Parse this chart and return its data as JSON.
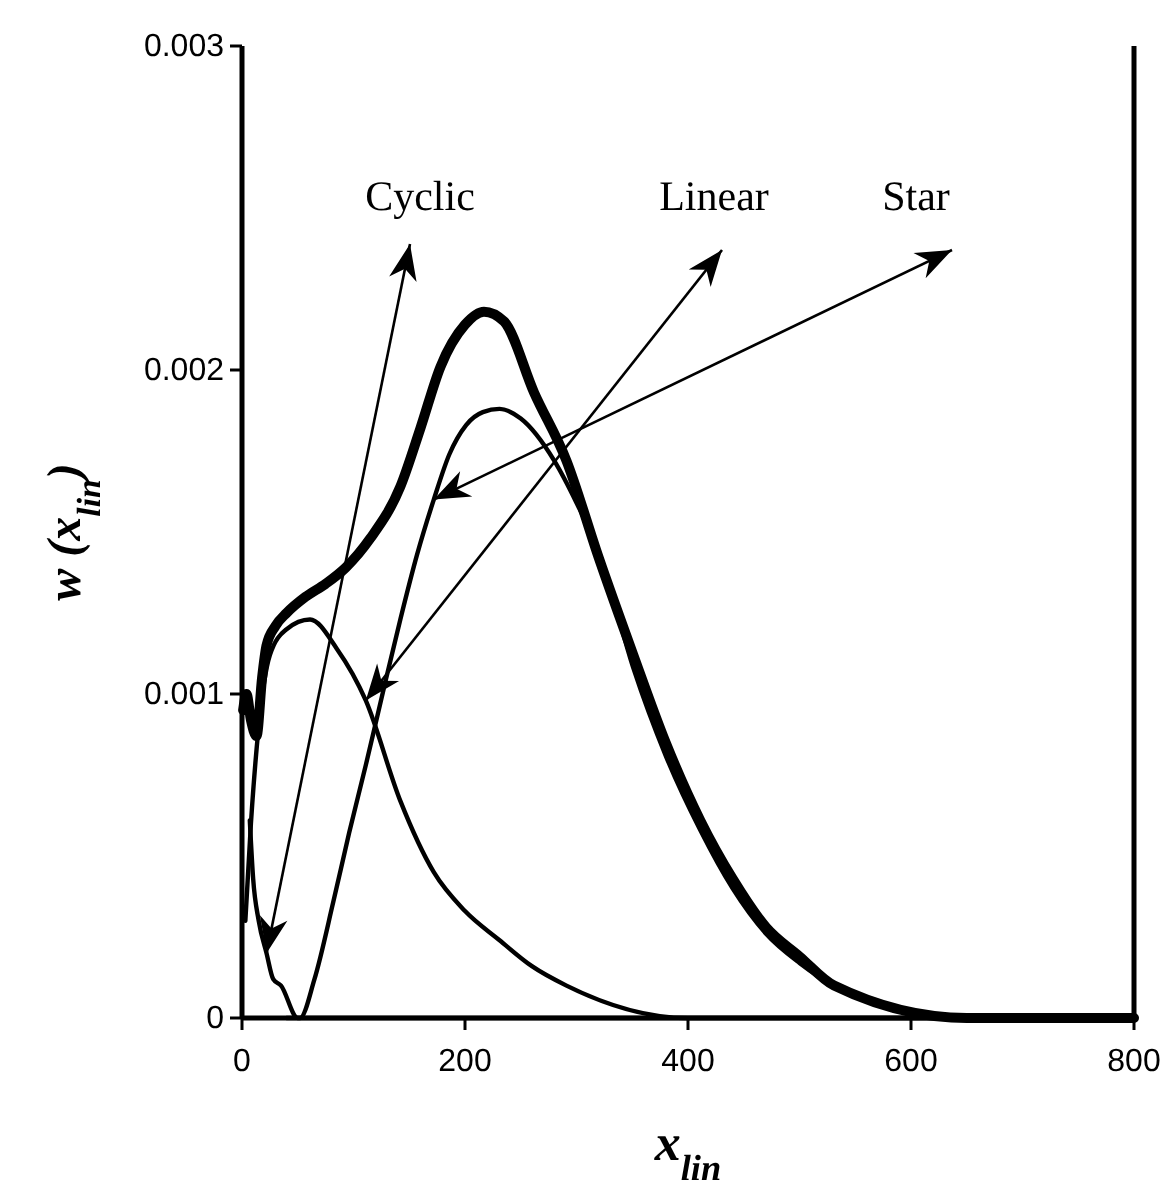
{
  "chart_data": {
    "type": "line",
    "xlabel": "x$_{lin}$",
    "ylabel": "w (x$_{lin}$)",
    "xlim": [
      0,
      800
    ],
    "xticks": [
      0,
      200,
      400,
      600,
      800
    ],
    "ylim": [
      0,
      0.003
    ],
    "yticks": [
      0,
      0.001,
      0.002,
      0.003
    ],
    "grid": false,
    "marker": "none",
    "line_style": "solid",
    "series": [
      {
        "color": "#000000",
        "x": [
          1,
          4,
          8,
          13,
          18,
          22,
          30,
          40,
          57,
          75,
          93,
          115,
          142,
          160,
          178,
          200,
          217,
          235,
          262,
          291,
          320,
          351,
          380,
          411,
          440,
          470,
          500,
          531,
          650,
          720,
          800
        ],
        "values": [
          0.00095,
          0.001,
          0.00092,
          0.00087,
          0.00105,
          0.00115,
          0.00121,
          0.00125,
          0.0013,
          0.00134,
          0.00139,
          0.00148,
          0.00164,
          0.00182,
          0.00201,
          0.00214,
          0.00218,
          0.00215,
          0.00193,
          0.00172,
          0.00142,
          0.00112,
          0.00085,
          0.00061,
          0.00043,
          0.00028,
          0.00019,
          0.0001,
          0,
          0,
          0
        ]
      },
      {
        "name": "Cyclic",
        "color": "#000000",
        "x": [
          7,
          10,
          15,
          22,
          28,
          35,
          50,
          100,
          200,
          800
        ],
        "values": [
          0.00061,
          0.00043,
          0.0003,
          0.0002,
          0.00012,
          0.0001,
          0,
          0,
          0,
          0
        ]
      },
      {
        "name": "Linear",
        "color": "#000000",
        "x": [
          3,
          8,
          15,
          25,
          40,
          61,
          85,
          111,
          142,
          172,
          200,
          231,
          260,
          291,
          400,
          450,
          800
        ],
        "values": [
          0.0003,
          0.0006,
          0.0009,
          0.00112,
          0.0012,
          0.00123,
          0.00114,
          0.00098,
          0.00067,
          0.00045,
          0.00033,
          0.00024,
          0.00016,
          0.0001,
          0,
          0,
          0
        ]
      },
      {
        "name": "Star",
        "color": "#000000",
        "x": [
          40,
          52,
          65,
          82,
          96,
          111,
          126,
          142,
          157,
          172,
          186,
          201,
          216,
          231,
          250,
          280,
          300,
          321,
          351,
          380,
          411,
          440,
          470,
          500,
          531,
          650,
          800
        ],
        "values": [
          0,
          0,
          0.00012,
          0.00036,
          0.00057,
          0.00078,
          0.001,
          0.00123,
          0.00143,
          0.0016,
          0.00174,
          0.00183,
          0.00187,
          0.00188,
          0.00185,
          0.00172,
          0.00159,
          0.00143,
          0.00108,
          0.00081,
          0.00058,
          0.0004,
          0.00026,
          0.00017,
          0.0001,
          0,
          0
        ]
      }
    ]
  }
}
